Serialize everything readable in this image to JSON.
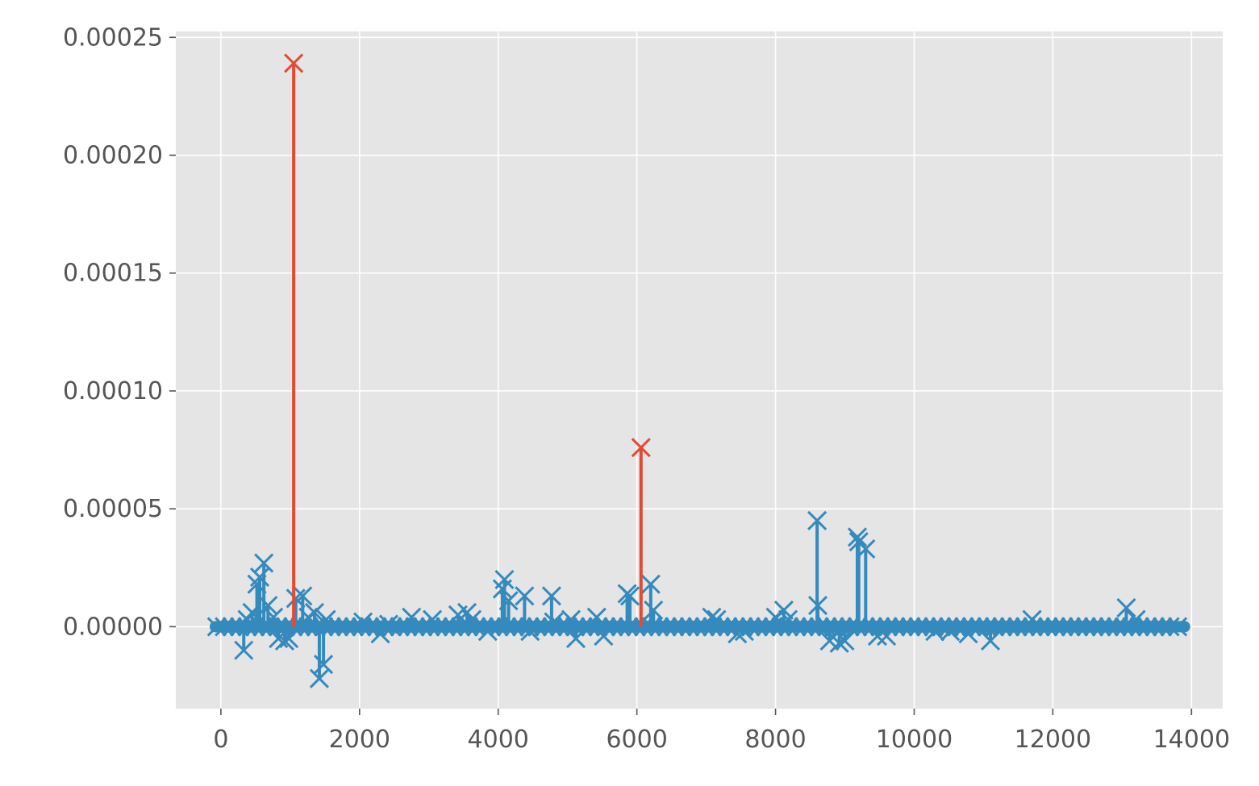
{
  "chart_data": {
    "type": "stem",
    "title": "",
    "xlabel": "",
    "ylabel": "",
    "xlim": [
      -650,
      14450
    ],
    "ylim": [
      -3.475e-05,
      0.0002525
    ],
    "xticks": [
      0,
      2000,
      4000,
      6000,
      8000,
      10000,
      12000,
      14000
    ],
    "xtick_labels": [
      "0",
      "2000",
      "4000",
      "6000",
      "8000",
      "10000",
      "12000",
      "14000"
    ],
    "yticks": [
      0,
      5e-05,
      0.0001,
      0.00015,
      0.0002,
      0.00025
    ],
    "ytick_labels": [
      "0.00000",
      "0.00005",
      "0.00010",
      "0.00015",
      "0.00020",
      "0.00025"
    ],
    "grid": true,
    "marker": "x",
    "background_color": "#e5e5e5",
    "grid_color": "#ffffff",
    "series": [
      {
        "color": "#348abd",
        "x": [
          330,
          380,
          450,
          520,
          560,
          620,
          680,
          760,
          830,
          920,
          980,
          1080,
          1180,
          1260,
          1350,
          1420,
          1480,
          1520,
          2050,
          2300,
          2420,
          2750,
          3050,
          3420,
          3550,
          3620,
          3850,
          4060,
          4090,
          4150,
          4380,
          4460,
          4770,
          4800,
          5050,
          5120,
          5420,
          5520,
          5860,
          5900,
          6200,
          6240,
          7080,
          7150,
          7450,
          7550,
          8000,
          8120,
          8180,
          8600,
          8610,
          8780,
          8920,
          9000,
          9180,
          9200,
          9300,
          9470,
          9600,
          10300,
          10520,
          10780,
          11100,
          11700,
          13060,
          13200
        ],
        "y": [
          -1e-05,
          3e-06,
          6e-06,
          1.8e-05,
          2.1e-05,
          2.7e-05,
          9e-06,
          4e-06,
          -5e-06,
          -6e-06,
          -5e-06,
          1.2e-05,
          1.3e-05,
          4e-06,
          6e-06,
          -2.2e-05,
          -1.6e-05,
          3e-06,
          2e-06,
          -3e-06,
          1e-06,
          4e-06,
          3e-06,
          5e-06,
          6e-06,
          3e-06,
          -2e-06,
          1.6e-05,
          2e-05,
          1.1e-05,
          1.3e-05,
          -2e-06,
          1.3e-05,
          2e-06,
          3e-06,
          -5e-06,
          4e-06,
          -4e-06,
          1.4e-05,
          1.3e-05,
          1.8e-05,
          7e-06,
          4e-06,
          3e-06,
          -3e-06,
          -2e-06,
          4e-06,
          7e-06,
          3e-06,
          4.5e-05,
          9e-06,
          -6e-06,
          -7e-06,
          -6e-06,
          3.8e-05,
          3.6e-05,
          3.3e-05,
          -4e-06,
          -4e-06,
          -2e-06,
          -2e-06,
          -3e-06,
          -6e-06,
          3e-06,
          8e-06,
          3e-06
        ]
      },
      {
        "color": "#e24a33",
        "x": [
          1050,
          6060
        ],
        "y": [
          0.000239,
          7.6e-05
        ]
      }
    ]
  }
}
